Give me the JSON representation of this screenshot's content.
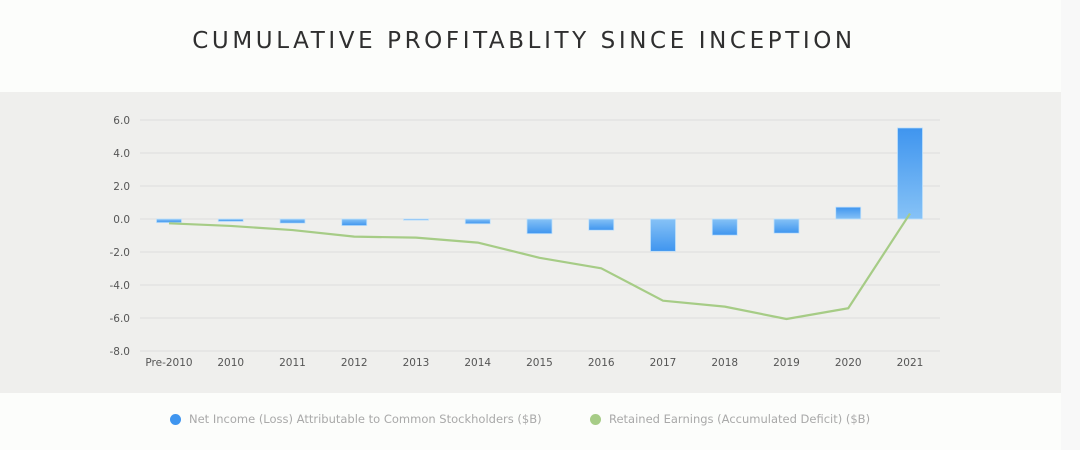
{
  "page": {
    "title": "CUMULATIVE PROFITABLITY SINCE INCEPTION"
  },
  "colors": {
    "bar_dark": "#3f95ef",
    "bar_light": "#86c2f6",
    "line": "#a6cc86",
    "gridline": "#dddddd",
    "legend_text": "#a9a9a9"
  },
  "chart_data": {
    "type": "bar",
    "title": "CUMULATIVE PROFITABLITY SINCE INCEPTION",
    "xlabel": "",
    "ylabel": "",
    "categories": [
      "Pre-2010",
      "2010",
      "2011",
      "2012",
      "2013",
      "2014",
      "2015",
      "2016",
      "2017",
      "2018",
      "2019",
      "2020",
      "2021"
    ],
    "ylim": [
      -8.0,
      6.0
    ],
    "yticks": [
      6.0,
      4.0,
      2.0,
      0.0,
      -2.0,
      -4.0,
      -6.0,
      -8.0
    ],
    "ytick_labels": [
      "6.0",
      "4.0",
      "2.0",
      "0.0",
      "-2.0",
      "-4.0",
      "-6.0",
      "-8.0"
    ],
    "grid": true,
    "legend_position": "bottom",
    "series": [
      {
        "name": "Net Income (Loss) Attributable to Common Stockholders ($B)",
        "type": "bar",
        "color": "#3f95ef",
        "values": [
          -0.22,
          -0.15,
          -0.25,
          -0.4,
          -0.07,
          -0.29,
          -0.89,
          -0.68,
          -1.96,
          -0.98,
          -0.86,
          0.72,
          5.52
        ]
      },
      {
        "name": "Retained Earnings (Accumulated Deficit) ($B)",
        "type": "line",
        "color": "#a6cc86",
        "values": [
          -0.26,
          -0.42,
          -0.67,
          -1.07,
          -1.13,
          -1.43,
          -2.35,
          -2.99,
          -4.95,
          -5.31,
          -6.06,
          -5.41,
          0.33
        ]
      }
    ]
  }
}
